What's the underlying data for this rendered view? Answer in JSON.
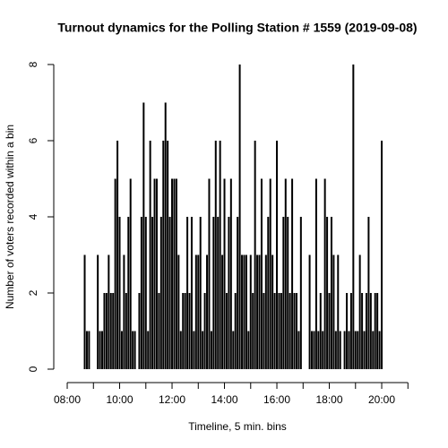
{
  "chart_data": {
    "type": "spike",
    "title": "Turnout dynamics for the Polling Station # 1559 (2019-09-08)",
    "xlabel": "Timeline, 5 min. bins",
    "ylabel": "Number of voters recorded within a bin",
    "color": "#000000",
    "x": [
      "08:40",
      "08:45",
      "08:50",
      "08:55",
      "09:00",
      "09:05",
      "09:10",
      "09:15",
      "09:20",
      "09:25",
      "09:30",
      "09:35",
      "09:40",
      "09:45",
      "09:50",
      "09:55",
      "10:00",
      "10:05",
      "10:10",
      "10:15",
      "10:20",
      "10:25",
      "10:30",
      "10:35",
      "10:40",
      "10:45",
      "10:50",
      "10:55",
      "11:00",
      "11:05",
      "11:10",
      "11:15",
      "11:20",
      "11:25",
      "11:30",
      "11:35",
      "11:40",
      "11:45",
      "11:50",
      "11:55",
      "12:00",
      "12:05",
      "12:10",
      "12:15",
      "12:20",
      "12:25",
      "12:30",
      "12:35",
      "12:40",
      "12:45",
      "12:50",
      "12:55",
      "13:00",
      "13:05",
      "13:10",
      "13:15",
      "13:20",
      "13:25",
      "13:30",
      "13:35",
      "13:40",
      "13:45",
      "13:50",
      "13:55",
      "14:00",
      "14:05",
      "14:10",
      "14:15",
      "14:20",
      "14:25",
      "14:30",
      "14:35",
      "14:40",
      "14:45",
      "14:50",
      "14:55",
      "15:00",
      "15:05",
      "15:10",
      "15:15",
      "15:20",
      "15:25",
      "15:30",
      "15:35",
      "15:40",
      "15:45",
      "15:50",
      "15:55",
      "16:00",
      "16:05",
      "16:10",
      "16:15",
      "16:20",
      "16:25",
      "16:30",
      "16:35",
      "16:40",
      "16:45",
      "16:50",
      "16:55",
      "17:00",
      "17:05",
      "17:10",
      "17:15",
      "17:20",
      "17:25",
      "17:30",
      "17:35",
      "17:40",
      "17:45",
      "17:50",
      "17:55",
      "18:00",
      "18:05",
      "18:10",
      "18:15",
      "18:20",
      "18:25",
      "18:30",
      "18:35",
      "18:40",
      "18:45",
      "18:50",
      "18:55",
      "19:00",
      "19:05",
      "19:10",
      "19:15",
      "19:20",
      "19:25",
      "19:30",
      "19:35",
      "19:40",
      "19:45",
      "19:50",
      "19:55",
      "20:00"
    ],
    "values": [
      3,
      1,
      1,
      0,
      0,
      0,
      3,
      1,
      1,
      2,
      2,
      3,
      2,
      2,
      5,
      6,
      4,
      1,
      3,
      2,
      4,
      5,
      1,
      1,
      0,
      2,
      4,
      7,
      4,
      1,
      6,
      4,
      5,
      5,
      2,
      4,
      6,
      7,
      6,
      4,
      5,
      5,
      5,
      3,
      1,
      2,
      2,
      4,
      2,
      4,
      1,
      3,
      3,
      4,
      1,
      2,
      3,
      5,
      1,
      4,
      6,
      4,
      6,
      3,
      5,
      2,
      4,
      5,
      1,
      2,
      4,
      8,
      3,
      3,
      3,
      1,
      3,
      2,
      6,
      3,
      3,
      5,
      2,
      3,
      4,
      5,
      3,
      2,
      6,
      2,
      2,
      4,
      5,
      4,
      2,
      5,
      2,
      2,
      1,
      4,
      0,
      0,
      0,
      3,
      1,
      1,
      5,
      1,
      2,
      1,
      5,
      4,
      2,
      4,
      3,
      1,
      3,
      1,
      0,
      1,
      2,
      1,
      2,
      8,
      1,
      1,
      3,
      2,
      1,
      2,
      4,
      2,
      1,
      2,
      2,
      1,
      6
    ],
    "xlim": [
      "07:30",
      "21:30"
    ],
    "xticks": [
      "08:00",
      "10:00",
      "12:00",
      "14:00",
      "16:00",
      "18:00",
      "20:00"
    ],
    "xminor_ticks": [
      "09:00",
      "11:00",
      "13:00",
      "15:00",
      "17:00",
      "19:00",
      "21:00"
    ],
    "ylim": [
      -0.3,
      8.3
    ],
    "yticks": [
      0,
      2,
      4,
      6,
      8
    ]
  }
}
